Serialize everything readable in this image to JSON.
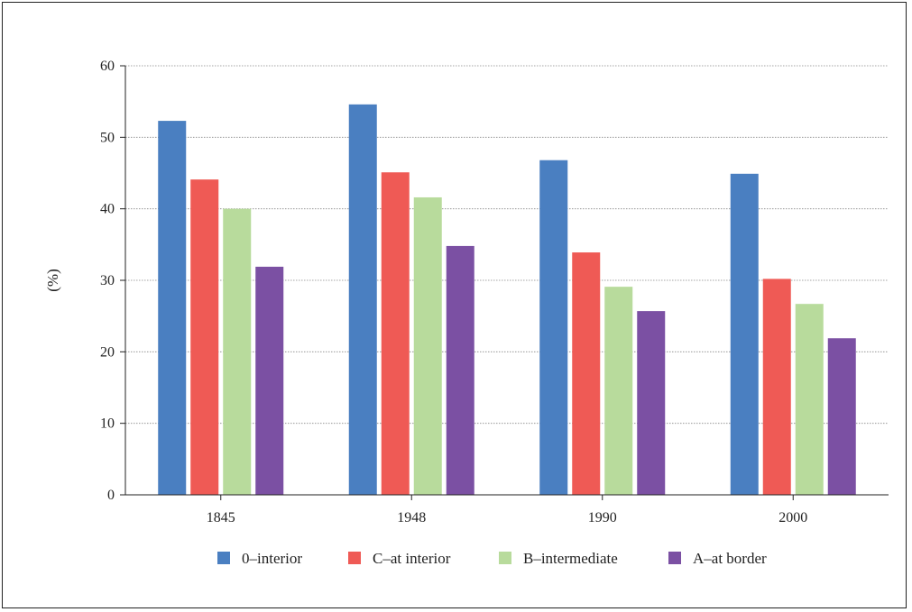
{
  "chart_data": {
    "type": "bar",
    "title": "",
    "xlabel": "",
    "ylabel": "(%)",
    "ylim": [
      0,
      60
    ],
    "yticks": [
      0,
      10,
      20,
      30,
      40,
      50,
      60
    ],
    "grid": true,
    "legend_position": "bottom",
    "categories": [
      "1845",
      "1948",
      "1990",
      "2000"
    ],
    "series": [
      {
        "name": "0–interior",
        "color": "#4a7fc1",
        "values": [
          52.3,
          54.6,
          46.8,
          44.9
        ]
      },
      {
        "name": "C–at interior",
        "color": "#ef5a55",
        "values": [
          44.1,
          45.1,
          33.9,
          30.2
        ]
      },
      {
        "name": "B–intermediate",
        "color": "#b8db9c",
        "values": [
          40.0,
          41.6,
          29.1,
          26.7
        ]
      },
      {
        "name": "A–at border",
        "color": "#7b50a3",
        "values": [
          31.9,
          34.8,
          25.7,
          21.9
        ]
      }
    ]
  }
}
